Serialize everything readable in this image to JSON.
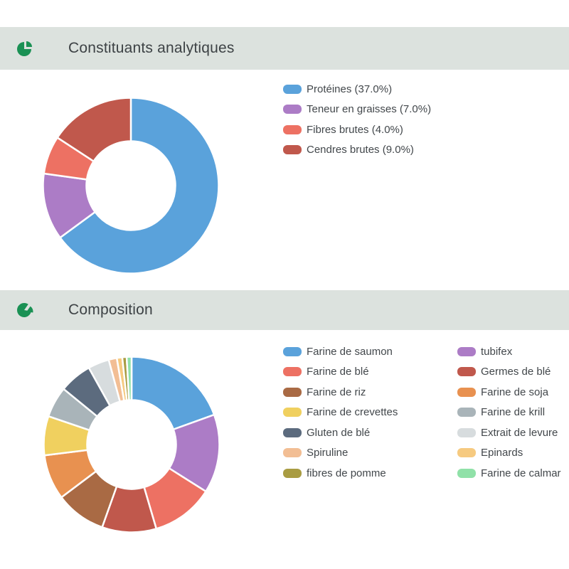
{
  "theme": {
    "page_background": "#ffffff",
    "header_background": "#dce2de",
    "icon_green": "#1a9154",
    "title_color": "#3d4245",
    "legend_text_color": "#42474b",
    "slice_gap_color": "#ffffff"
  },
  "headers": [
    {
      "icon": "pie-chart-icon",
      "title_ref": "chart_data.0.title"
    },
    {
      "icon": "pie-slice-icon",
      "title_ref": "chart_data.1.title"
    }
  ],
  "chart_data": [
    {
      "type": "donut",
      "title": "Constituants analytiques",
      "legend_position": "right",
      "legend_columns": 1,
      "units": "%",
      "hole_ratio": 0.5,
      "items": [
        {
          "label": "Protéines",
          "legend_label": "Protéines (37.0%)",
          "value": 37.0,
          "color": "#5aa2db"
        },
        {
          "label": "Teneur en graisses",
          "legend_label": "Teneur en graisses (7.0%)",
          "value": 7.0,
          "color": "#ac7cc6"
        },
        {
          "label": "Fibres brutes",
          "legend_label": "Fibres brutes (4.0%)",
          "value": 4.0,
          "color": "#ed7163"
        },
        {
          "label": "Cendres brutes",
          "legend_label": "Cendres brutes (9.0%)",
          "value": 9.0,
          "color": "#c0584c"
        }
      ]
    },
    {
      "type": "donut",
      "title": "Composition",
      "legend_position": "right",
      "legend_columns": 2,
      "hole_ratio": 0.5,
      "items": [
        {
          "label": "Farine de saumon",
          "value": 19.5,
          "color": "#5aa2db"
        },
        {
          "label": "tubifex",
          "value": 14.5,
          "color": "#ac7cc6"
        },
        {
          "label": "Farine de blé",
          "value": 11.5,
          "color": "#ed7163"
        },
        {
          "label": "Germes de blé",
          "value": 10.0,
          "color": "#c0584c"
        },
        {
          "label": "Farine de riz",
          "value": 9.3,
          "color": "#a96a44"
        },
        {
          "label": "Farine de soja",
          "value": 8.3,
          "color": "#e89150"
        },
        {
          "label": "Farine de crevettes",
          "value": 7.2,
          "color": "#f0d05f"
        },
        {
          "label": "Farine de krill",
          "value": 5.7,
          "color": "#a9b4b9"
        },
        {
          "label": "Gluten de blé",
          "value": 6.0,
          "color": "#5c6b7e"
        },
        {
          "label": "Extrait de levure",
          "value": 3.9,
          "color": "#d7dcde"
        },
        {
          "label": "Spiruline",
          "value": 1.5,
          "color": "#f2be94"
        },
        {
          "label": "Epinards",
          "value": 1.0,
          "color": "#f6ca80"
        },
        {
          "label": "fibres de pomme",
          "value": 0.8,
          "color": "#a99c42"
        },
        {
          "label": "Farine de calmar",
          "value": 0.9,
          "color": "#90e1a8"
        }
      ]
    }
  ]
}
